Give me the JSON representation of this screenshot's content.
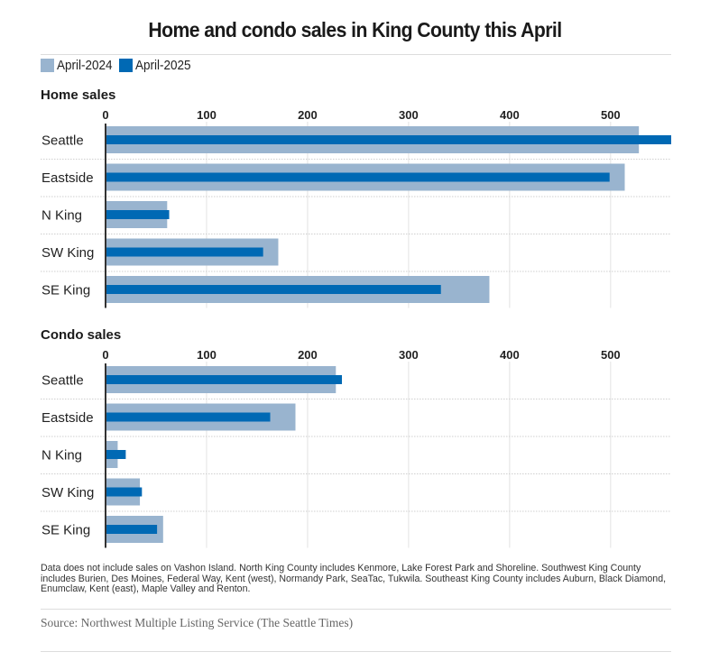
{
  "title": "Home and condo sales in King County this April",
  "legend": [
    {
      "label": "April-2024",
      "color": "#99b4cf"
    },
    {
      "label": "April-2025",
      "color": "#0069b4"
    }
  ],
  "colors": {
    "series_2024": "#99b4cf",
    "series_2025": "#0069b4",
    "axis": "#333333",
    "grid": "#e2e2e2"
  },
  "chart_data": [
    {
      "type": "bar",
      "orientation": "horizontal",
      "title": "Home sales",
      "categories": [
        "Seattle",
        "Eastside",
        "N King",
        "SW King",
        "SE King"
      ],
      "series": [
        {
          "name": "April-2024",
          "values": [
            528,
            514,
            61,
            171,
            380
          ]
        },
        {
          "name": "April-2025",
          "values": [
            560,
            499,
            63,
            156,
            332
          ]
        }
      ],
      "xticks": [
        0,
        100,
        200,
        300,
        400,
        500
      ],
      "xlim": [
        0,
        560
      ],
      "grid": true,
      "legend_position": "top-left"
    },
    {
      "type": "bar",
      "orientation": "horizontal",
      "title": "Condo sales",
      "categories": [
        "Seattle",
        "Eastside",
        "N King",
        "SW King",
        "SE King"
      ],
      "series": [
        {
          "name": "April-2024",
          "values": [
            228,
            188,
            12,
            34,
            57
          ]
        },
        {
          "name": "April-2025",
          "values": [
            234,
            163,
            20,
            36,
            51
          ]
        }
      ],
      "xticks": [
        0,
        100,
        200,
        300,
        400,
        500
      ],
      "xlim": [
        0,
        560
      ],
      "grid": true,
      "legend_position": "top-left"
    }
  ],
  "note": "Data does not include sales on Vashon Island. North King County includes Kenmore, Lake Forest Park and Shoreline. Southwest King County includes Burien, Des Moines, Federal Way, Kent (west), Normandy Park, SeaTac, Tukwila. Southeast King County includes Auburn, Black Diamond, Enumclaw, Kent (east), Maple Valley and Renton.",
  "source": "Source: Northwest Multiple Listing Service (The Seattle Times)"
}
